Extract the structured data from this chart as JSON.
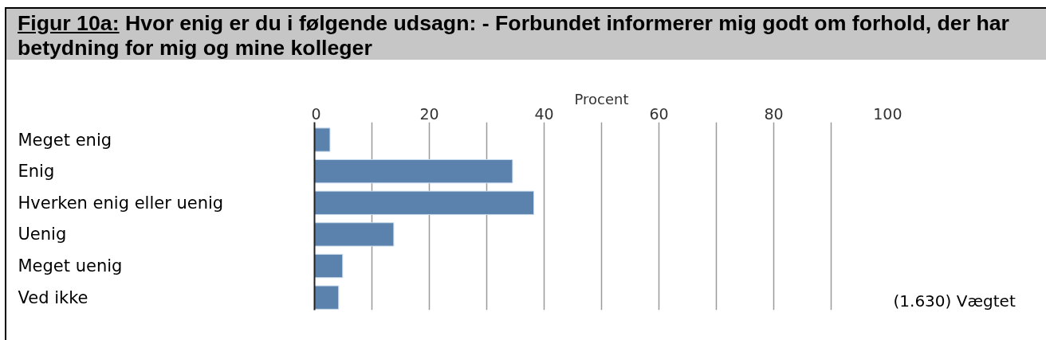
{
  "chart_data": {
    "type": "bar",
    "orientation": "horizontal",
    "title": "Figur 10a: Hvor enig er du i følgende udsagn: - Forbundet informerer mig godt om forhold, der har betydning for mig og mine kolleger",
    "xlabel": "Procent",
    "categories": [
      "Meget enig",
      "Enig",
      "Hverken enig eller uenig",
      "Uenig",
      "Meget uenig",
      "Ved ikke"
    ],
    "values": [
      2.7,
      34.5,
      38.2,
      13.8,
      4.9,
      4.2
    ],
    "color": "#5b82ad",
    "xlim": [
      0,
      100
    ],
    "xticks": [
      0,
      {
        "value": 10,
        "label": null
      },
      20,
      {
        "value": 30,
        "label": null
      },
      40,
      {
        "value": 50,
        "label": null
      },
      60,
      {
        "value": 70,
        "label": null
      },
      80,
      {
        "value": 90,
        "label": null
      },
      100
    ],
    "grid": "x",
    "annotations": [
      "(1.630) Vægtet"
    ]
  }
}
